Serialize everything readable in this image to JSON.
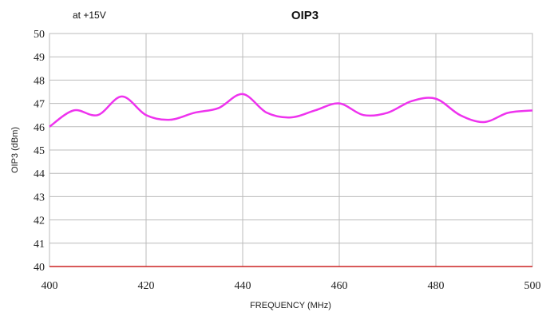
{
  "chart_data": {
    "type": "line",
    "title": "OIP3",
    "subtitle": "at +15V",
    "xlabel": "FREQUENCY (MHz)",
    "ylabel": "OIP3 (dBm)",
    "xlim": [
      400,
      500
    ],
    "ylim": [
      40,
      50
    ],
    "xticks": [
      400,
      420,
      440,
      460,
      480,
      500
    ],
    "yticks": [
      40,
      41,
      42,
      43,
      44,
      45,
      46,
      47,
      48,
      49,
      50
    ],
    "grid": true,
    "series": [
      {
        "color": "#ee33ee",
        "x": [
          400,
          405,
          410,
          415,
          420,
          425,
          430,
          435,
          440,
          445,
          450,
          455,
          460,
          465,
          470,
          475,
          480,
          485,
          490,
          495,
          500
        ],
        "y": [
          46.0,
          46.7,
          46.5,
          47.3,
          46.5,
          46.3,
          46.6,
          46.8,
          47.4,
          46.6,
          46.4,
          46.7,
          47.0,
          46.5,
          46.6,
          47.1,
          47.2,
          46.5,
          46.2,
          46.6,
          46.7
        ]
      }
    ],
    "baseline_color": "#cc2222",
    "grid_color": "#bbbbbb"
  }
}
